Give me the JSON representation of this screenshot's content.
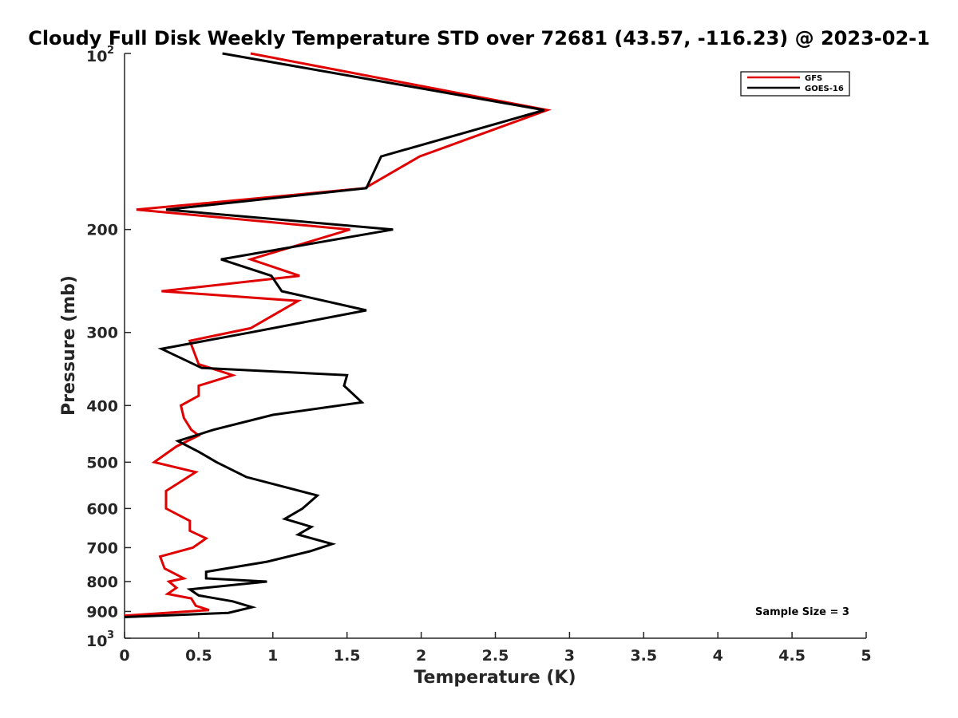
{
  "chart_data": {
    "type": "line",
    "title": "Cloudy Full Disk Weekly Temperature STD over 72681 (43.57, -116.23) @ 2023-02-1",
    "xlabel": "Temperature (K)",
    "ylabel": "Pressure (mb)",
    "xlim": [
      0,
      5
    ],
    "ylim": [
      100,
      1000
    ],
    "yscale": "log",
    "y_reversed": true,
    "grid": false,
    "legend_position": "top-right",
    "x_ticks": [
      "0",
      "0.5",
      "1",
      "1.5",
      "2",
      "2.5",
      "3",
      "3.5",
      "4",
      "4.5",
      "5"
    ],
    "y_ticks": [
      {
        "value": 100,
        "base": "10",
        "sup": "2"
      },
      {
        "value": 200,
        "label": "200"
      },
      {
        "value": 300,
        "label": "300"
      },
      {
        "value": 400,
        "label": "400"
      },
      {
        "value": 500,
        "label": "500"
      },
      {
        "value": 600,
        "label": "600"
      },
      {
        "value": 700,
        "label": "700"
      },
      {
        "value": 800,
        "label": "800"
      },
      {
        "value": 900,
        "label": "900"
      },
      {
        "value": 1000,
        "base": "10",
        "sup": "3"
      }
    ],
    "annotation": "Sample Size = 3",
    "series": [
      {
        "name": "GFS",
        "color": "#e00000",
        "points": [
          [
            0.85,
            100
          ],
          [
            2.85,
            125
          ],
          [
            1.99,
            150
          ],
          [
            1.62,
            170
          ],
          [
            0.08,
            185
          ],
          [
            1.52,
            200
          ],
          [
            0.85,
            225
          ],
          [
            1.18,
            240
          ],
          [
            0.25,
            255
          ],
          [
            1.17,
            265
          ],
          [
            0.85,
            295
          ],
          [
            0.44,
            310
          ],
          [
            0.5,
            340
          ],
          [
            0.73,
            355
          ],
          [
            0.5,
            370
          ],
          [
            0.5,
            385
          ],
          [
            0.38,
            400
          ],
          [
            0.4,
            420
          ],
          [
            0.45,
            440
          ],
          [
            0.5,
            450
          ],
          [
            0.35,
            470
          ],
          [
            0.2,
            500
          ],
          [
            0.48,
            520
          ],
          [
            0.28,
            560
          ],
          [
            0.28,
            600
          ],
          [
            0.44,
            630
          ],
          [
            0.44,
            655
          ],
          [
            0.55,
            675
          ],
          [
            0.46,
            700
          ],
          [
            0.24,
            725
          ],
          [
            0.27,
            760
          ],
          [
            0.4,
            790
          ],
          [
            0.3,
            800
          ],
          [
            0.35,
            820
          ],
          [
            0.29,
            840
          ],
          [
            0.45,
            855
          ],
          [
            0.48,
            880
          ],
          [
            0.57,
            895
          ],
          [
            0.0,
            915
          ]
        ]
      },
      {
        "name": "GOES-16",
        "color": "#000000",
        "points": [
          [
            0.66,
            100
          ],
          [
            2.83,
            125
          ],
          [
            1.73,
            150
          ],
          [
            1.63,
            170
          ],
          [
            0.28,
            185
          ],
          [
            1.81,
            200
          ],
          [
            0.65,
            225
          ],
          [
            0.99,
            240
          ],
          [
            1.06,
            255
          ],
          [
            1.63,
            275
          ],
          [
            0.85,
            300
          ],
          [
            0.25,
            320
          ],
          [
            0.52,
            345
          ],
          [
            1.5,
            355
          ],
          [
            1.48,
            370
          ],
          [
            1.6,
            395
          ],
          [
            1.0,
            415
          ],
          [
            0.6,
            440
          ],
          [
            0.36,
            460
          ],
          [
            0.5,
            480
          ],
          [
            0.62,
            500
          ],
          [
            0.82,
            530
          ],
          [
            1.3,
            570
          ],
          [
            1.2,
            600
          ],
          [
            1.08,
            625
          ],
          [
            1.26,
            645
          ],
          [
            1.17,
            665
          ],
          [
            1.4,
            690
          ],
          [
            1.25,
            710
          ],
          [
            0.96,
            740
          ],
          [
            0.55,
            770
          ],
          [
            0.55,
            790
          ],
          [
            0.96,
            800
          ],
          [
            0.44,
            825
          ],
          [
            0.5,
            845
          ],
          [
            0.73,
            865
          ],
          [
            0.86,
            885
          ],
          [
            0.7,
            905
          ],
          [
            0.0,
            920
          ]
        ]
      }
    ]
  }
}
